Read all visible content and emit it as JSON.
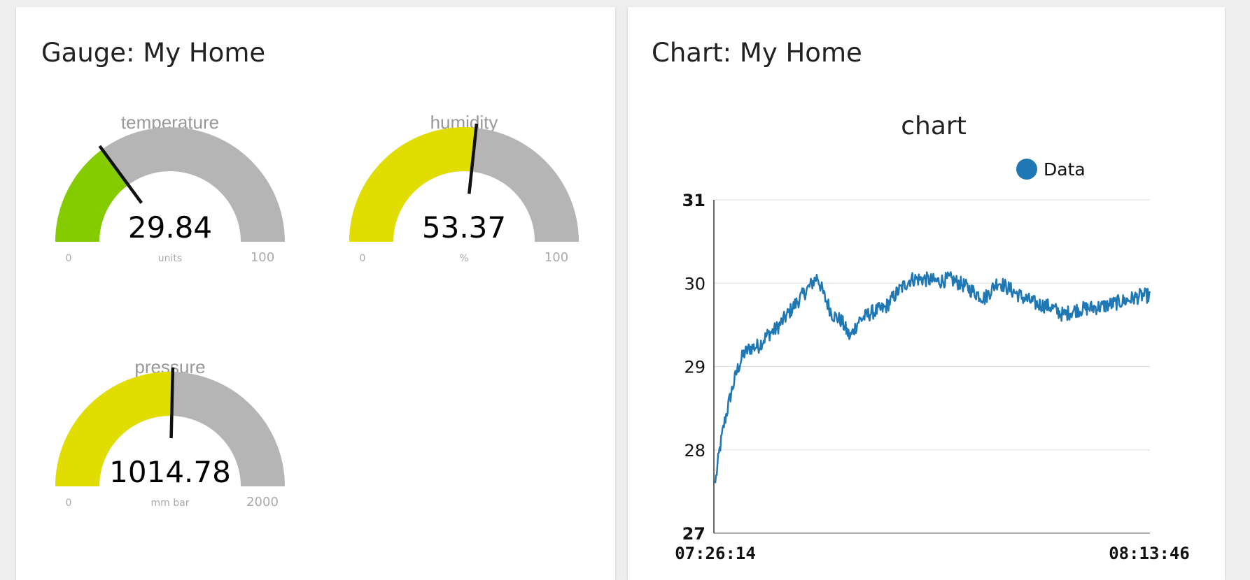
{
  "gauge_panel": {
    "title": "Gauge: My Home",
    "gauges": [
      {
        "label": "temperature",
        "value_text": "29.84",
        "value": 29.84,
        "min_text": "0",
        "max_text": "100",
        "min": 0,
        "max": 100,
        "units": "units",
        "fill_color": "#84cc00"
      },
      {
        "label": "humidity",
        "value_text": "53.37",
        "value": 53.37,
        "min_text": "0",
        "max_text": "100",
        "min": 0,
        "max": 100,
        "units": "%",
        "fill_color": "#e2dd00"
      },
      {
        "label": "pressure",
        "value_text": "1014.78",
        "value": 1014.78,
        "min_text": "0",
        "max_text": "2000",
        "min": 0,
        "max": 2000,
        "units": "mm bar",
        "fill_color": "#e2dd00"
      }
    ],
    "track_color": "#b5b5b5"
  },
  "chart_panel": {
    "title": "Chart: My Home"
  },
  "chart_data": {
    "type": "line",
    "title": "chart",
    "legend": "top-right",
    "series": [
      {
        "name": "Data",
        "color": "#1f77b4"
      }
    ],
    "ylim": [
      27,
      31
    ],
    "y_ticks": [
      "27",
      "28",
      "29",
      "30",
      "31"
    ],
    "x_start": "07:26:14",
    "x_end": "08:13:46",
    "grid": "horizontal",
    "trend": [
      [
        0.0,
        27.6
      ],
      [
        0.01,
        28.0
      ],
      [
        0.02,
        28.3
      ],
      [
        0.035,
        28.65
      ],
      [
        0.05,
        28.95
      ],
      [
        0.065,
        29.15
      ],
      [
        0.08,
        29.22
      ],
      [
        0.1,
        29.25
      ],
      [
        0.12,
        29.38
      ],
      [
        0.14,
        29.45
      ],
      [
        0.16,
        29.58
      ],
      [
        0.18,
        29.72
      ],
      [
        0.2,
        29.85
      ],
      [
        0.22,
        29.98
      ],
      [
        0.235,
        30.08
      ],
      [
        0.25,
        29.85
      ],
      [
        0.27,
        29.62
      ],
      [
        0.29,
        29.55
      ],
      [
        0.31,
        29.35
      ],
      [
        0.33,
        29.55
      ],
      [
        0.36,
        29.65
      ],
      [
        0.39,
        29.7
      ],
      [
        0.42,
        29.9
      ],
      [
        0.45,
        30.05
      ],
      [
        0.48,
        30.05
      ],
      [
        0.51,
        30.02
      ],
      [
        0.54,
        30.05
      ],
      [
        0.57,
        29.98
      ],
      [
        0.6,
        29.88
      ],
      [
        0.62,
        29.82
      ],
      [
        0.65,
        30.02
      ],
      [
        0.68,
        29.92
      ],
      [
        0.71,
        29.82
      ],
      [
        0.74,
        29.75
      ],
      [
        0.77,
        29.72
      ],
      [
        0.8,
        29.62
      ],
      [
        0.83,
        29.68
      ],
      [
        0.86,
        29.7
      ],
      [
        0.89,
        29.72
      ],
      [
        0.92,
        29.76
      ],
      [
        0.95,
        29.8
      ],
      [
        0.98,
        29.85
      ],
      [
        1.0,
        29.85
      ]
    ]
  }
}
